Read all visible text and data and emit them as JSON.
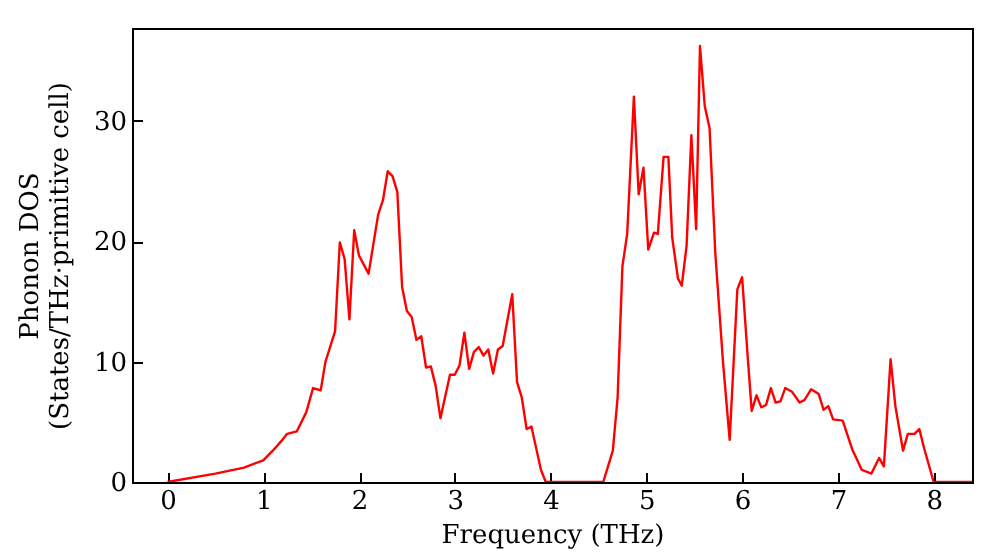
{
  "chart_data": {
    "type": "line",
    "xlabel": "Frequency (THz)",
    "ylabel": "Phonon DOS\n(States/THz·primitive cell)",
    "xlim": [
      -0.37,
      8.4
    ],
    "ylim": [
      0,
      37.7
    ],
    "xticks": [
      0,
      1,
      2,
      3,
      4,
      5,
      6,
      7,
      8
    ],
    "yticks": [
      0,
      10,
      20,
      30
    ],
    "grid": false,
    "legend": false,
    "marker": "none",
    "line_style": "solid",
    "x": [
      0,
      0.5,
      0.8,
      1.0,
      1.1,
      1.2,
      1.25,
      1.35,
      1.45,
      1.52,
      1.6,
      1.65,
      1.75,
      1.8,
      1.85,
      1.9,
      1.95,
      2.0,
      2.1,
      2.2,
      2.25,
      2.3,
      2.35,
      2.4,
      2.45,
      2.5,
      2.55,
      2.6,
      2.65,
      2.7,
      2.75,
      2.8,
      2.85,
      2.95,
      3.0,
      3.05,
      3.1,
      3.15,
      3.2,
      3.25,
      3.3,
      3.35,
      3.4,
      3.45,
      3.5,
      3.6,
      3.65,
      3.7,
      3.75,
      3.8,
      3.9,
      3.95,
      4.55,
      4.65,
      4.7,
      4.75,
      4.8,
      4.87,
      4.92,
      4.97,
      5.02,
      5.08,
      5.12,
      5.18,
      5.23,
      5.27,
      5.33,
      5.37,
      5.42,
      5.47,
      5.52,
      5.56,
      5.61,
      5.66,
      5.72,
      5.8,
      5.87,
      5.95,
      6.0,
      6.06,
      6.1,
      6.15,
      6.2,
      6.25,
      6.3,
      6.35,
      6.4,
      6.45,
      6.52,
      6.6,
      6.65,
      6.72,
      6.8,
      6.85,
      6.9,
      6.95,
      7.05,
      7.15,
      7.25,
      7.35,
      7.43,
      7.48,
      7.55,
      7.6,
      7.68,
      7.73,
      7.8,
      7.85,
      7.9,
      8.0,
      8.4
    ],
    "series": [
      {
        "color": "#ff0000",
        "values": [
          0,
          0.7,
          1.2,
          1.8,
          2.6,
          3.5,
          4.0,
          4.2,
          5.8,
          7.8,
          7.6,
          10,
          12.5,
          19.9,
          18.5,
          13.5,
          20.9,
          18.8,
          17.3,
          22.2,
          23.4,
          25.8,
          25.4,
          24.1,
          16.2,
          14.2,
          13.7,
          11.8,
          12.1,
          9.5,
          9.6,
          8.0,
          5.3,
          8.9,
          8.9,
          9.7,
          12.4,
          9.4,
          10.8,
          11.2,
          10.5,
          11.0,
          9.0,
          11.0,
          11.3,
          15.6,
          8.3,
          7.0,
          4.4,
          4.6,
          1.0,
          0,
          0,
          2.6,
          7,
          17.9,
          20.6,
          32,
          23.9,
          26.1,
          19.3,
          20.7,
          20.6,
          27.0,
          27.0,
          20.3,
          16.9,
          16.3,
          19.6,
          28.8,
          21.0,
          36.2,
          31.2,
          29.4,
          19,
          10,
          3.5,
          16,
          17,
          10.2,
          5.9,
          7.2,
          6.2,
          6.4,
          7.8,
          6.6,
          6.7,
          7.8,
          7.5,
          6.6,
          6.8,
          7.7,
          7.3,
          6.0,
          6.3,
          5.2,
          5.1,
          2.7,
          1.0,
          0.7,
          2.0,
          1.3,
          10.2,
          6.3,
          2.6,
          4.0,
          4.0,
          4.4,
          2.8,
          0,
          0
        ]
      }
    ]
  }
}
